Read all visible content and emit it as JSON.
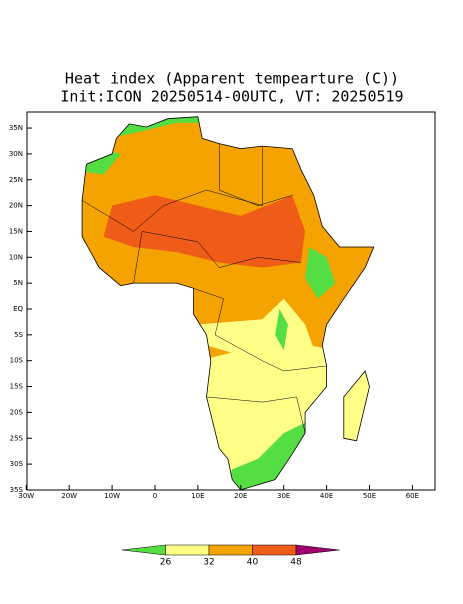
{
  "map": {
    "title": "Heat index (Apparent tempearture (C))",
    "subtitle": "Init:ICON 20250514-00UTC, VT: 20250519",
    "xticks": [
      {
        "value": -30,
        "label": "30W"
      },
      {
        "value": -20,
        "label": "20W"
      },
      {
        "value": -10,
        "label": "10W"
      },
      0,
      {
        "value": 10,
        "label": "10E"
      },
      {
        "value": 20,
        "label": "20E"
      },
      {
        "value": 30,
        "label": "30E"
      },
      {
        "value": 40,
        "label": "40E"
      },
      {
        "value": 50,
        "label": "50E"
      },
      {
        "value": 60,
        "label": "60E"
      }
    ],
    "yticks": [
      {
        "value": 35,
        "label": "35N"
      },
      {
        "value": 30,
        "label": "30N"
      },
      {
        "value": 25,
        "label": "25N"
      },
      {
        "value": 20,
        "label": "20N"
      },
      {
        "value": 15,
        "label": "15N"
      },
      {
        "value": 10,
        "label": "10N"
      },
      {
        "value": 5,
        "label": "5N"
      },
      {
        "value": 0,
        "label": "EQ"
      },
      {
        "value": -5,
        "label": "5S"
      },
      {
        "value": -10,
        "label": "10S"
      },
      {
        "value": -15,
        "label": "15S"
      },
      {
        "value": -20,
        "label": "20S"
      },
      {
        "value": -25,
        "label": "25S"
      },
      {
        "value": -30,
        "label": "30S"
      },
      {
        "value": -35,
        "label": "35S"
      }
    ],
    "levels": [
      26,
      32,
      40,
      48
    ],
    "colors": [
      "#55dd44",
      "#ffff88",
      "#f5a300",
      "#ee5c18",
      "#a0006e"
    ]
  }
}
